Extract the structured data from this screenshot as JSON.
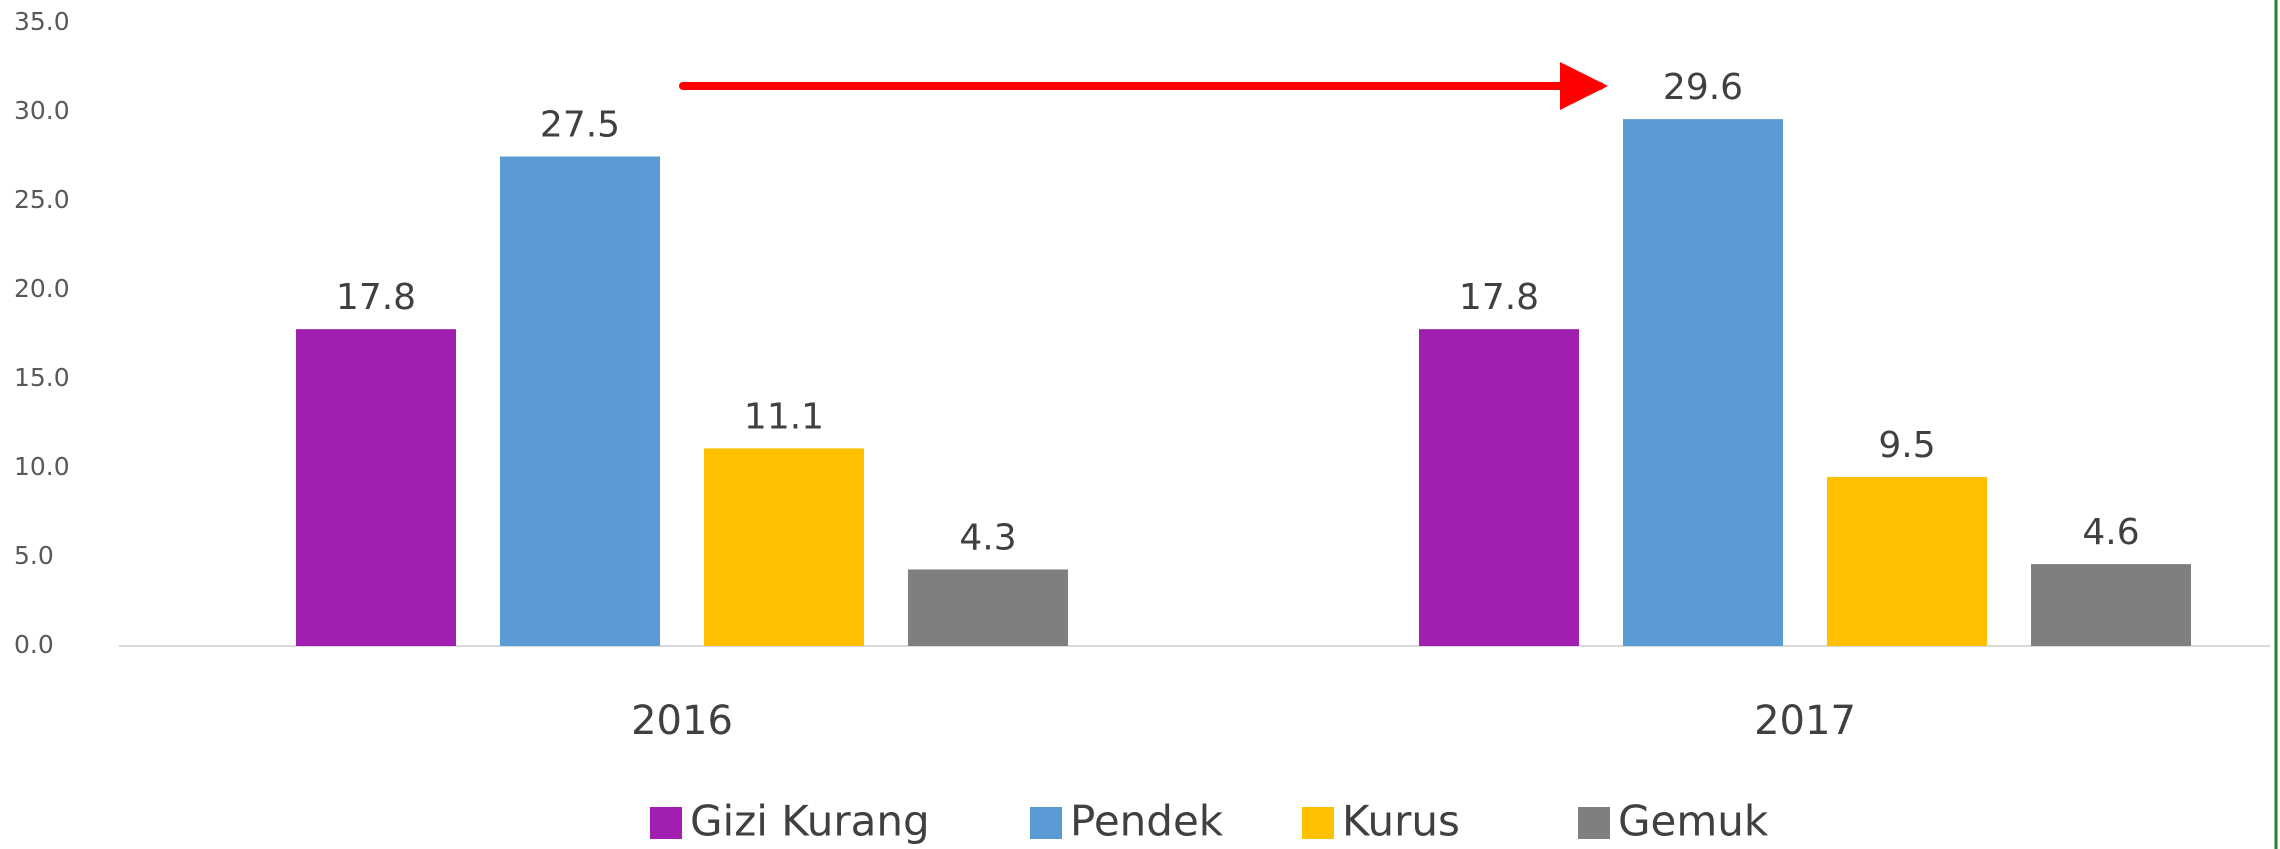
{
  "chart_data": {
    "type": "bar",
    "categories": [
      "2016",
      "2017"
    ],
    "series": [
      {
        "name": "Gizi Kurang",
        "color": "#a11fb0",
        "values": [
          17.8,
          17.8
        ]
      },
      {
        "name": "Pendek",
        "color": "#5b9bd5",
        "values": [
          27.5,
          29.6
        ]
      },
      {
        "name": "Kurus",
        "color": "#ffc000",
        "values": [
          11.1,
          9.5
        ]
      },
      {
        "name": "Gemuk",
        "color": "#7f7f7f",
        "values": [
          4.3,
          4.6
        ]
      }
    ],
    "ylim": [
      0,
      35
    ],
    "yticks": [
      {
        "value": 0,
        "label": "0.0"
      },
      {
        "value": 5,
        "label": "5.0"
      },
      {
        "value": 10,
        "label": "10.0"
      },
      {
        "value": 15,
        "label": "15.0"
      },
      {
        "value": 20,
        "label": "20.0"
      },
      {
        "value": 25,
        "label": "25.0"
      },
      {
        "value": 30,
        "label": "30.0"
      },
      {
        "value": 35,
        "label": "35.0"
      }
    ],
    "grid": false,
    "legend": "bottom"
  }
}
